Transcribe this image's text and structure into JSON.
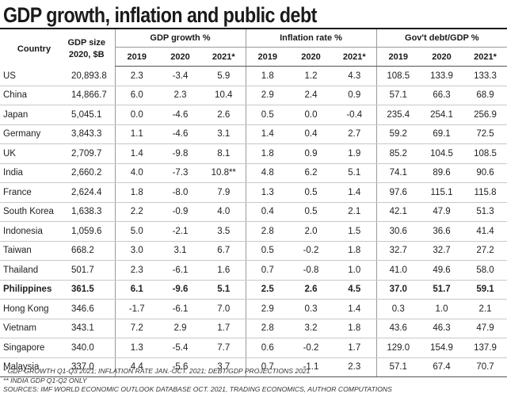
{
  "title": "GDP growth, inflation and public debt",
  "header": {
    "country": "Country",
    "gdp_size_line1": "GDP size",
    "gdp_size_line2": "2020, $B",
    "groups": [
      "GDP growth %",
      "Inflation rate %",
      "Gov't debt/GDP %"
    ],
    "years": [
      "2019",
      "2020",
      "2021*"
    ]
  },
  "rows": [
    {
      "country": "US",
      "size": "20,893.8",
      "values": [
        "2.3",
        "-3.4",
        "5.9",
        "1.8",
        "1.2",
        "4.3",
        "108.5",
        "133.9",
        "133.3"
      ]
    },
    {
      "country": "China",
      "size": "14,866.7",
      "values": [
        "6.0",
        "2.3",
        "10.4",
        "2.9",
        "2.4",
        "0.9",
        "57.1",
        "66.3",
        "68.9"
      ]
    },
    {
      "country": "Japan",
      "size": "5,045.1",
      "values": [
        "0.0",
        "-4.6",
        "2.6",
        "0.5",
        "0.0",
        "-0.4",
        "235.4",
        "254.1",
        "256.9"
      ]
    },
    {
      "country": "Germany",
      "size": "3,843.3",
      "values": [
        "1.1",
        "-4.6",
        "3.1",
        "1.4",
        "0.4",
        "2.7",
        "59.2",
        "69.1",
        "72.5"
      ]
    },
    {
      "country": "UK",
      "size": "2,709.7",
      "values": [
        "1.4",
        "-9.8",
        "8.1",
        "1.8",
        "0.9",
        "1.9",
        "85.2",
        "104.5",
        "108.5"
      ]
    },
    {
      "country": "India",
      "size": "2,660.2",
      "values": [
        "4.0",
        "-7.3",
        "10.8**",
        "4.8",
        "6.2",
        "5.1",
        "74.1",
        "89.6",
        "90.6"
      ]
    },
    {
      "country": "France",
      "size": "2,624.4",
      "values": [
        "1.8",
        "-8.0",
        "7.9",
        "1.3",
        "0.5",
        "1.4",
        "97.6",
        "115.1",
        "115.8"
      ]
    },
    {
      "country": "South Korea",
      "size": "1,638.3",
      "values": [
        "2.2",
        "-0.9",
        "4.0",
        "0.4",
        "0.5",
        "2.1",
        "42.1",
        "47.9",
        "51.3"
      ]
    },
    {
      "country": "Indonesia",
      "size": "1,059.6",
      "values": [
        "5.0",
        "-2.1",
        "3.5",
        "2.8",
        "2.0",
        "1.5",
        "30.6",
        "36.6",
        "41.4"
      ]
    },
    {
      "country": "Taiwan",
      "size": "668.2",
      "values": [
        "3.0",
        "3.1",
        "6.7",
        "0.5",
        "-0.2",
        "1.8",
        "32.7",
        "32.7",
        "27.2"
      ]
    },
    {
      "country": "Thailand",
      "size": "501.7",
      "values": [
        "2.3",
        "-6.1",
        "1.6",
        "0.7",
        "-0.8",
        "1.0",
        "41.0",
        "49.6",
        "58.0"
      ]
    },
    {
      "country": "Philippines",
      "size": "361.5",
      "values": [
        "6.1",
        "-9.6",
        "5.1",
        "2.5",
        "2.6",
        "4.5",
        "37.0",
        "51.7",
        "59.1"
      ],
      "bold": true
    },
    {
      "country": "Hong Kong",
      "size": "346.6",
      "values": [
        "-1.7",
        "-6.1",
        "7.0",
        "2.9",
        "0.3",
        "1.4",
        "0.3",
        "1.0",
        "2.1"
      ]
    },
    {
      "country": "Vietnam",
      "size": "343.1",
      "values": [
        "7.2",
        "2.9",
        "1.7",
        "2.8",
        "3.2",
        "1.8",
        "43.6",
        "46.3",
        "47.9"
      ]
    },
    {
      "country": "Singapore",
      "size": "340.0",
      "values": [
        "1.3",
        "-5.4",
        "7.7",
        "0.6",
        "-0.2",
        "1.7",
        "129.0",
        "154.9",
        "137.9"
      ]
    },
    {
      "country": "Malaysia",
      "size": "337.0",
      "values": [
        "4.4",
        "-5.6",
        "3.7",
        "0.7",
        "-1.1",
        "2.3",
        "57.1",
        "67.4",
        "70.7"
      ]
    }
  ],
  "notes": [
    "* GDP growth Q1-Q3 2021; inflation rate Jan.-Oct. 2021; Debt/GDP projections 2021",
    "** India GDP Q1-Q2 only",
    "Sources: IMF World Economic Outlook Database Oct. 2021, Trading Economics, Author computations"
  ]
}
